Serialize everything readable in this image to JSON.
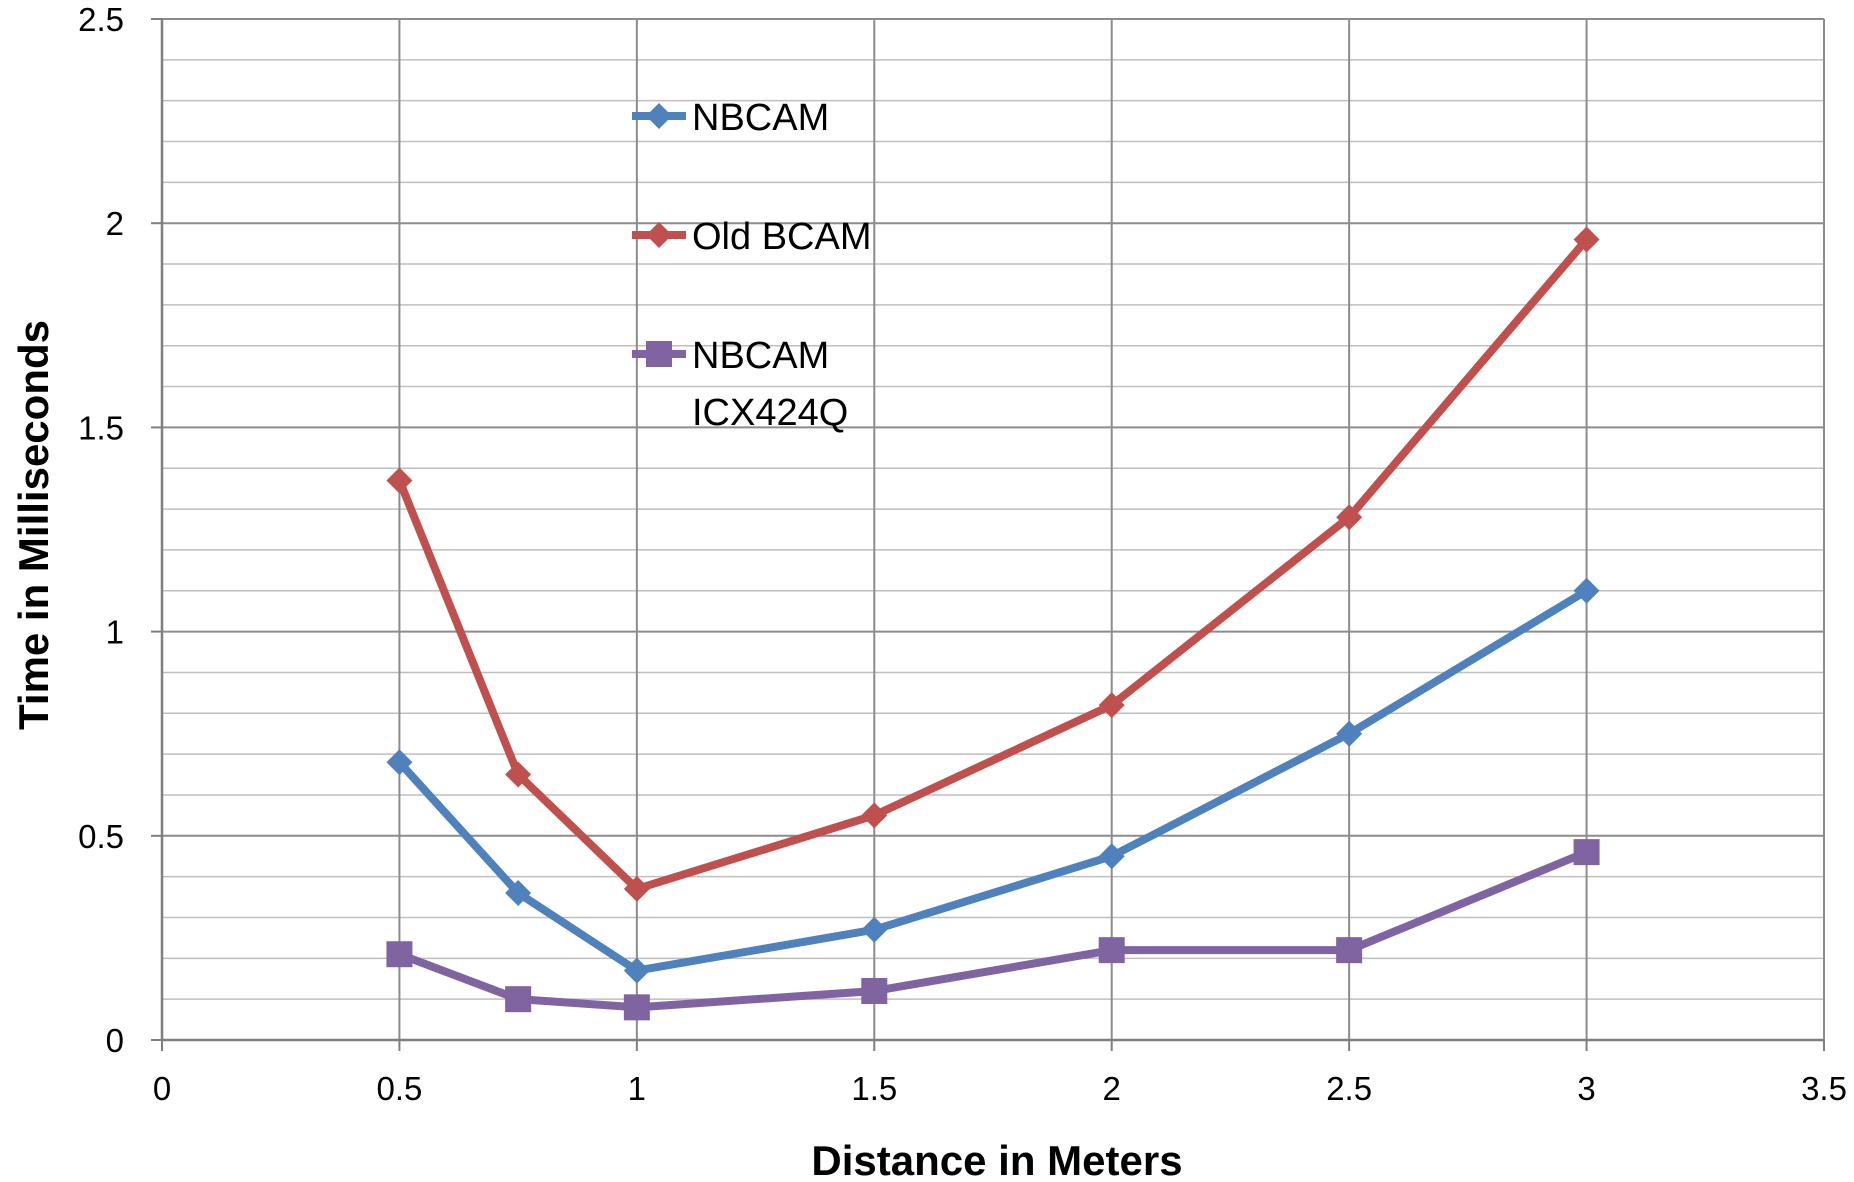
{
  "chart_data": {
    "type": "line",
    "title": "",
    "xlabel": "Distance in Meters",
    "ylabel": "Time in Milliseconds",
    "xlim": [
      0,
      3.5
    ],
    "ylim": [
      0,
      2.5
    ],
    "xticks": [
      0,
      0.5,
      1,
      1.5,
      2,
      2.5,
      3,
      3.5
    ],
    "xtick_labels": [
      "0",
      "0.5",
      "1",
      "1.5",
      "2",
      "2.5",
      "3",
      "3.5"
    ],
    "yticks": [
      0,
      0.5,
      1,
      1.5,
      2,
      2.5
    ],
    "ytick_labels": [
      "0",
      "0.5",
      "1",
      "1.5",
      "2",
      "2.5"
    ],
    "y_minor_step": 0.1,
    "grid": true,
    "legend_position": "top-center",
    "x": [
      0.5,
      0.75,
      1,
      1.5,
      2,
      2.5,
      3
    ],
    "series": [
      {
        "name": "NBCAM",
        "legend_lines": [
          "NBCAM"
        ],
        "color": "#4F81BD",
        "marker": "diamond",
        "values": [
          0.68,
          0.36,
          0.17,
          0.27,
          0.45,
          0.75,
          1.1
        ]
      },
      {
        "name": "Old BCAM",
        "legend_lines": [
          "Old BCAM"
        ],
        "color": "#C0504D",
        "marker": "diamond",
        "values": [
          1.37,
          0.65,
          0.37,
          0.55,
          0.82,
          1.28,
          1.96
        ]
      },
      {
        "name": "NBCAM ICX424Q",
        "legend_lines": [
          "NBCAM",
          "ICX424Q"
        ],
        "color": "#8064A2",
        "marker": "square",
        "values": [
          0.21,
          0.1,
          0.08,
          0.12,
          0.22,
          0.22,
          0.46
        ]
      }
    ]
  }
}
